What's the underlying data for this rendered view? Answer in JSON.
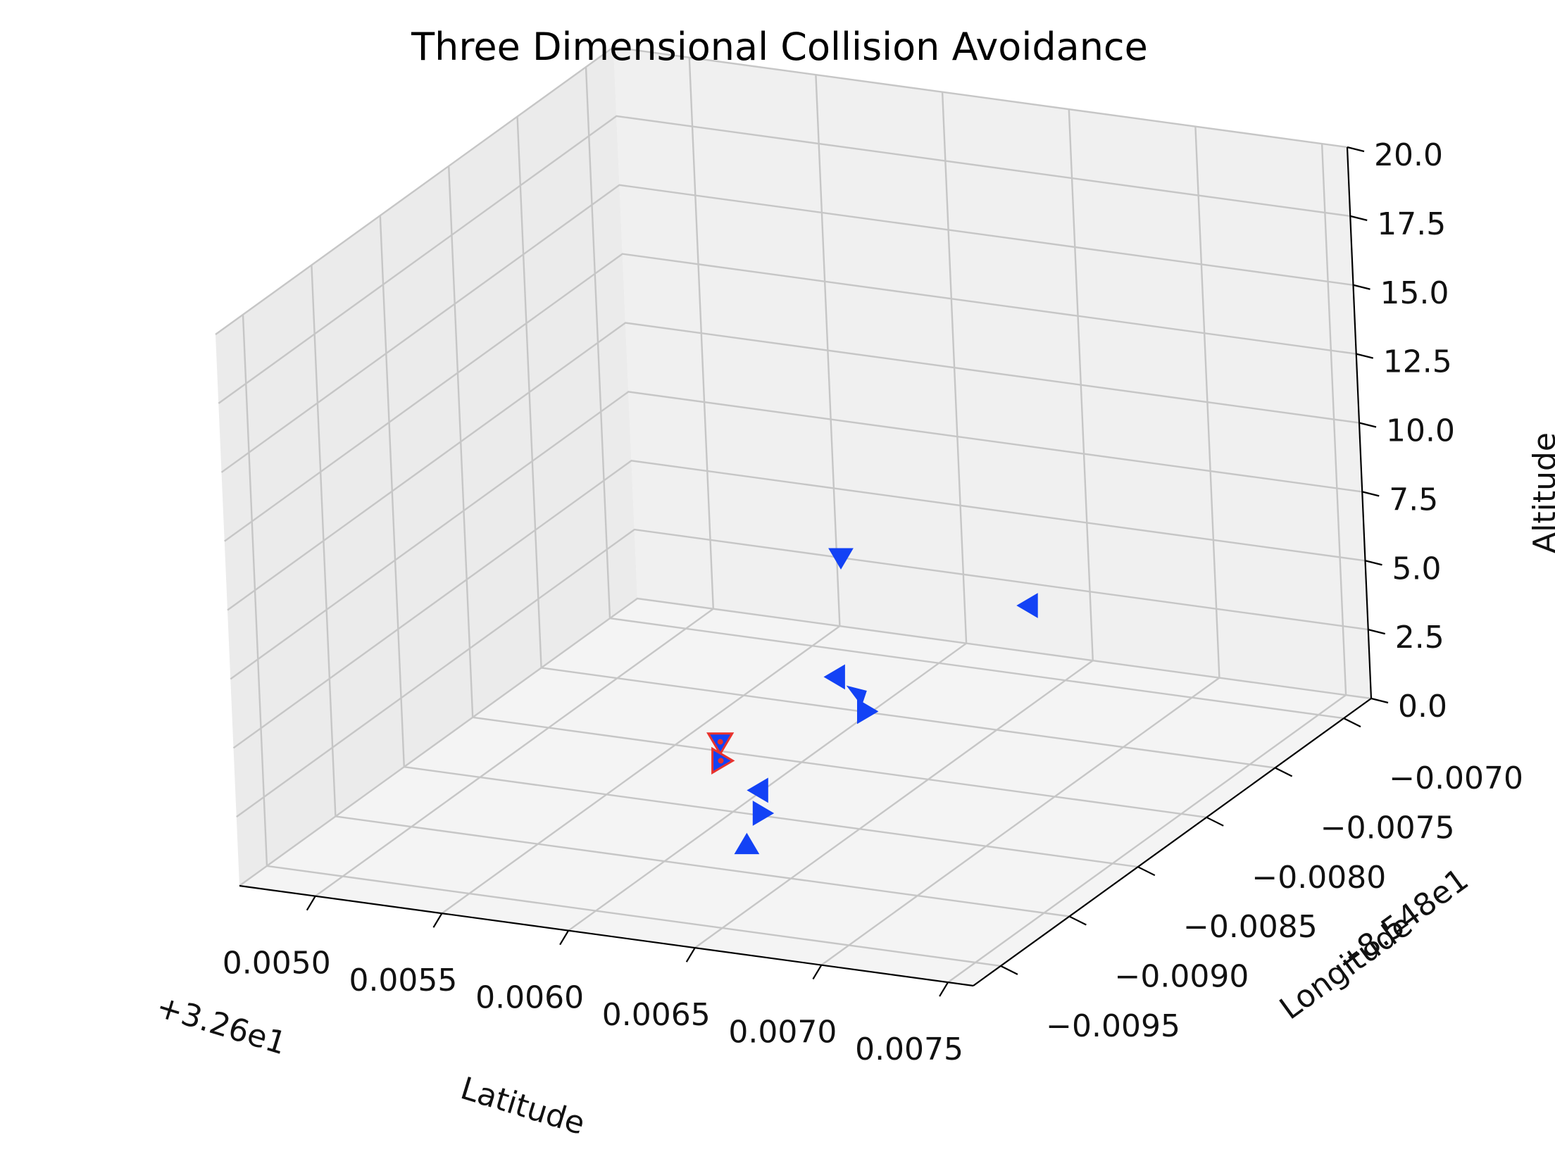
{
  "chart_data": {
    "type": "scatter3d",
    "title": "Three Dimensional Collision Avoidance",
    "xlabel": "Latitude",
    "ylabel": "Longitude",
    "zlabel": "Altitude",
    "x_offset_label": "+3.26e1",
    "y_offset_label": "−8.548e1",
    "x_ticks": [
      "0.0050",
      "0.0055",
      "0.0060",
      "0.0065",
      "0.0070",
      "0.0075"
    ],
    "y_ticks": [
      "−0.0095",
      "−0.0090",
      "−0.0085",
      "−0.0080",
      "−0.0075",
      "−0.0070"
    ],
    "z_ticks": [
      "0.0",
      "2.5",
      "5.0",
      "7.5",
      "10.0",
      "12.5",
      "15.0",
      "17.5",
      "20.0"
    ],
    "xlim": [
      0.0047,
      0.0076
    ],
    "ylim": [
      -0.0097,
      -0.0068
    ],
    "zlim": [
      0,
      20
    ],
    "marker_color": "#1342f5",
    "accent_color": "#e8322d",
    "grid": true,
    "series": [
      {
        "marker": "triangle",
        "points": [
          {
            "lat": 0.00618,
            "lon": -0.00798,
            "alt": 7.6,
            "dir": "down"
          },
          {
            "lat": 0.00665,
            "lon": -0.0075,
            "alt": 4.7,
            "dir": "left"
          },
          {
            "lat": 0.00622,
            "lon": -0.00812,
            "alt": 3.8,
            "dir": "left"
          },
          {
            "lat": 0.00628,
            "lon": -0.00807,
            "alt": 3.1,
            "dir": "down-right"
          },
          {
            "lat": 0.00632,
            "lon": -0.0081,
            "alt": 2.6,
            "dir": "right"
          },
          {
            "lat": 0.00595,
            "lon": -0.00848,
            "alt": 2.4,
            "dir": "down",
            "highlight": true
          },
          {
            "lat": 0.00596,
            "lon": -0.0085,
            "alt": 1.8,
            "dir": "right",
            "highlight": true
          },
          {
            "lat": 0.00612,
            "lon": -0.00852,
            "alt": 1.0,
            "dir": "left"
          },
          {
            "lat": 0.00618,
            "lon": -0.00862,
            "alt": 0.6,
            "dir": "right"
          },
          {
            "lat": 0.00624,
            "lon": -0.00884,
            "alt": 0.3,
            "dir": "up"
          }
        ]
      }
    ]
  }
}
